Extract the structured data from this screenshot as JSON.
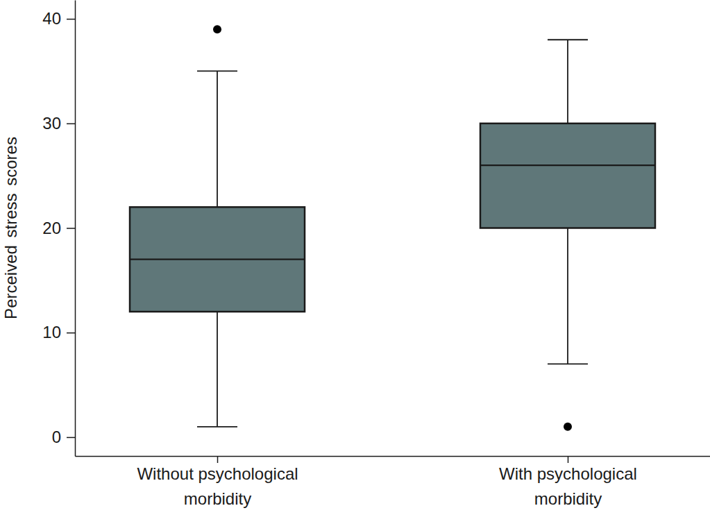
{
  "chart_data": {
    "type": "box",
    "y_label": "Perceived stress scores",
    "categories": [
      "Without psychological\nmorbidity",
      "With psychological\nmorbidity"
    ],
    "boxes": [
      {
        "min": 1,
        "q1": 12,
        "median": 17,
        "q3": 22,
        "max": 35,
        "outliers": [
          39
        ]
      },
      {
        "min": 7,
        "q1": 20,
        "median": 26,
        "q3": 30,
        "max": 38,
        "outliers": [
          1
        ]
      }
    ],
    "color": "#5f7779",
    "ylim": [
      -1.8,
      41.8
    ],
    "yticks": [
      0,
      10,
      20,
      30,
      40
    ],
    "grid": false
  }
}
